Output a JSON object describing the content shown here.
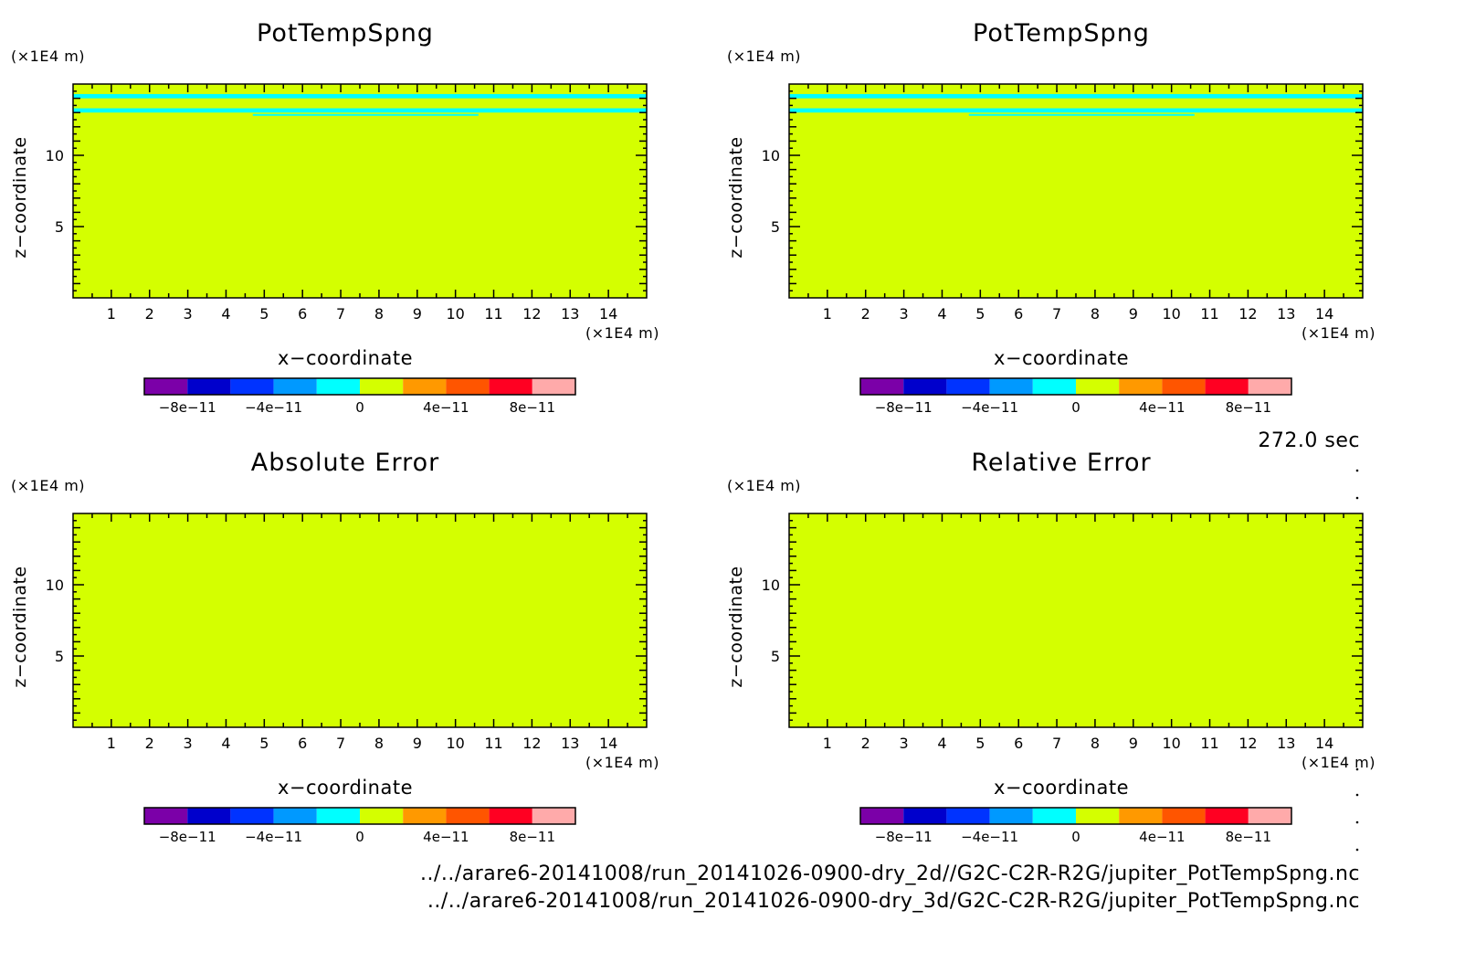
{
  "figure": {
    "time_label": "272.0 sec",
    "files": [
      "../../arare6-20141008/run_20141026-0900-dry_2d//G2C-C2R-R2G/jupiter_PotTempSpng.nc",
      "../../arare6-20141008/run_20141026-0900-dry_3d/G2C-C2R-R2G/jupiter_PotTempSpng.nc"
    ],
    "colors": {
      "background_field": "#d4ff00",
      "stripe": "#00ffff",
      "axes": "#000000"
    },
    "colorbar_levels": [
      "#7b00a8",
      "#0000cc",
      "#0033ff",
      "#0099ff",
      "#00ffff",
      "#d4ff00",
      "#ff9900",
      "#ff5500",
      "#ff0022",
      "#ffaaaa"
    ]
  },
  "chart_data": [
    {
      "type": "heatmap",
      "title": "PotTempSpng",
      "xlabel": "x−coordinate",
      "ylabel": "z−coordinate",
      "x_unit": "(×1E4 m)",
      "y_unit": "(×1E4 m)",
      "xlim": [
        0,
        15
      ],
      "ylim": [
        0,
        15
      ],
      "xticks": [
        "1",
        "2",
        "3",
        "4",
        "5",
        "6",
        "7",
        "8",
        "9",
        "10",
        "11",
        "12",
        "13",
        "14"
      ],
      "yticks": [
        "5",
        "10"
      ],
      "colorbar_ticks": [
        "−8e−11",
        "−4e−11",
        "0",
        "4e−11",
        "8e−11"
      ],
      "colorbar_range": [
        -1e-10,
        1e-10
      ],
      "field_value": 0,
      "stripes": [
        {
          "z": [
            14.0,
            14.3
          ],
          "x": [
            0,
            15
          ]
        },
        {
          "z": [
            13.0,
            13.3
          ],
          "x": [
            0,
            15
          ]
        },
        {
          "z": [
            12.8,
            12.9
          ],
          "x": [
            4.7,
            10.6
          ]
        }
      ]
    },
    {
      "type": "heatmap",
      "title": "PotTempSpng",
      "xlabel": "x−coordinate",
      "ylabel": "z−coordinate",
      "x_unit": "(×1E4 m)",
      "y_unit": "(×1E4 m)",
      "xlim": [
        0,
        15
      ],
      "ylim": [
        0,
        15
      ],
      "xticks": [
        "1",
        "2",
        "3",
        "4",
        "5",
        "6",
        "7",
        "8",
        "9",
        "10",
        "11",
        "12",
        "13",
        "14"
      ],
      "yticks": [
        "5",
        "10"
      ],
      "colorbar_ticks": [
        "−8e−11",
        "−4e−11",
        "0",
        "4e−11",
        "8e−11"
      ],
      "colorbar_range": [
        -1e-10,
        1e-10
      ],
      "field_value": 0,
      "stripes": [
        {
          "z": [
            14.0,
            14.3
          ],
          "x": [
            0,
            15
          ]
        },
        {
          "z": [
            13.0,
            13.3
          ],
          "x": [
            0,
            15
          ]
        },
        {
          "z": [
            12.8,
            12.9
          ],
          "x": [
            4.7,
            10.6
          ]
        }
      ]
    },
    {
      "type": "heatmap",
      "title": "Absolute Error",
      "xlabel": "x−coordinate",
      "ylabel": "z−coordinate",
      "x_unit": "(×1E4 m)",
      "y_unit": "(×1E4 m)",
      "xlim": [
        0,
        15
      ],
      "ylim": [
        0,
        15
      ],
      "xticks": [
        "1",
        "2",
        "3",
        "4",
        "5",
        "6",
        "7",
        "8",
        "9",
        "10",
        "11",
        "12",
        "13",
        "14"
      ],
      "yticks": [
        "5",
        "10"
      ],
      "colorbar_ticks": [
        "−8e−11",
        "−4e−11",
        "0",
        "4e−11",
        "8e−11"
      ],
      "colorbar_range": [
        -1e-10,
        1e-10
      ],
      "field_value": 0,
      "stripes": []
    },
    {
      "type": "heatmap",
      "title": "Relative Error",
      "xlabel": "x−coordinate",
      "ylabel": "z−coordinate",
      "x_unit": "(×1E4 m)",
      "y_unit": "(×1E4 m)",
      "xlim": [
        0,
        15
      ],
      "ylim": [
        0,
        15
      ],
      "xticks": [
        "1",
        "2",
        "3",
        "4",
        "5",
        "6",
        "7",
        "8",
        "9",
        "10",
        "11",
        "12",
        "13",
        "14"
      ],
      "yticks": [
        "5",
        "10"
      ],
      "colorbar_ticks": [
        "−8e−11",
        "−4e−11",
        "0",
        "4e−11",
        "8e−11"
      ],
      "colorbar_range": [
        -1e-10,
        1e-10
      ],
      "field_value": 0,
      "stripes": []
    }
  ]
}
